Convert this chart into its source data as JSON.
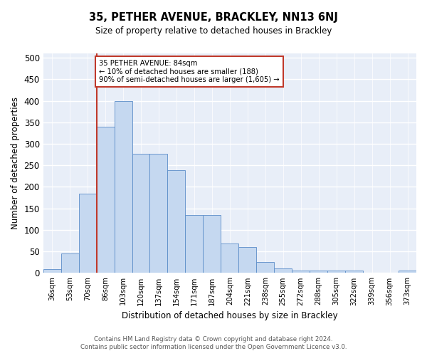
{
  "title": "35, PETHER AVENUE, BRACKLEY, NN13 6NJ",
  "subtitle": "Size of property relative to detached houses in Brackley",
  "xlabel": "Distribution of detached houses by size in Brackley",
  "ylabel": "Number of detached properties",
  "categories": [
    "36sqm",
    "53sqm",
    "70sqm",
    "86sqm",
    "103sqm",
    "120sqm",
    "137sqm",
    "154sqm",
    "171sqm",
    "187sqm",
    "204sqm",
    "221sqm",
    "238sqm",
    "255sqm",
    "272sqm",
    "288sqm",
    "305sqm",
    "322sqm",
    "339sqm",
    "356sqm",
    "373sqm"
  ],
  "values": [
    9,
    46,
    185,
    340,
    400,
    277,
    277,
    238,
    135,
    135,
    68,
    60,
    25,
    10,
    5,
    5,
    5,
    5,
    0,
    0,
    5
  ],
  "bar_color": "#c5d8f0",
  "bar_edge_color": "#5b8dc8",
  "vline_position": 2.5,
  "vline_color": "#c0392b",
  "annotation_text": "35 PETHER AVENUE: 84sqm\n← 10% of detached houses are smaller (188)\n90% of semi-detached houses are larger (1,605) →",
  "annotation_box_color": "white",
  "annotation_box_edge_color": "#c0392b",
  "ylim": [
    0,
    510
  ],
  "yticks": [
    0,
    50,
    100,
    150,
    200,
    250,
    300,
    350,
    400,
    450,
    500
  ],
  "background_color": "#e8eef8",
  "grid_color": "white",
  "footnote1": "Contains HM Land Registry data © Crown copyright and database right 2024.",
  "footnote2": "Contains public sector information licensed under the Open Government Licence v3.0."
}
